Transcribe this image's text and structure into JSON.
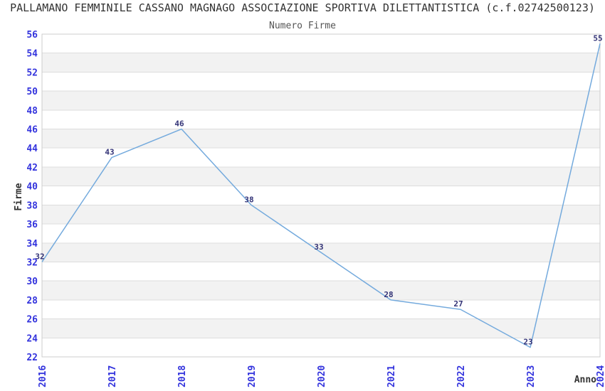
{
  "chart_data": {
    "type": "line",
    "title": "PALLAMANO FEMMINILE CASSANO MAGNAGO ASSOCIAZIONE SPORTIVA DILETTANTISTICA (c.f.02742500123)",
    "subtitle": "Numero Firme",
    "xlabel": "Anno",
    "ylabel": "Firme",
    "categories": [
      "2016",
      "2017",
      "2018",
      "2019",
      "2020",
      "2021",
      "2022",
      "2023",
      "2024"
    ],
    "values": [
      32,
      43,
      46,
      38,
      33,
      28,
      27,
      23,
      55
    ],
    "ylim": [
      22,
      56
    ],
    "ytick_step": 2,
    "grid": "horizontal-gridlines-with-alternating-bands",
    "legend": "none",
    "markers": "none",
    "colors": {
      "line": "#74aadd",
      "tick_label": "#3333dd",
      "data_label": "#333377",
      "title": "#333333",
      "subtitle": "#555555",
      "axis_title": "#333333",
      "band": "#f2f2f2",
      "gridline": "#dddddd",
      "frame": "#cccccc",
      "background": "#ffffff"
    }
  }
}
